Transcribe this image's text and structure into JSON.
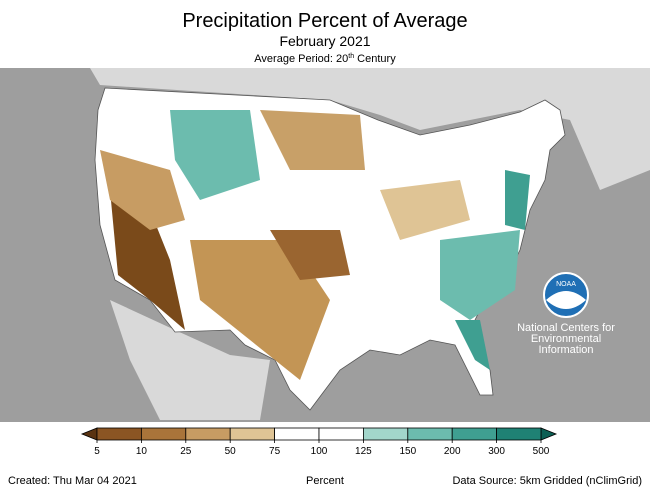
{
  "header": {
    "title": "Precipitation Percent of Average",
    "subtitle": "February 2021",
    "period": {
      "prefix": "Average Period: 20",
      "sup": "th",
      "suffix": " Century"
    }
  },
  "logo": {
    "name": "NOAA",
    "caption": [
      "National Centers for",
      "Environmental",
      "Information"
    ]
  },
  "legend": {
    "ticks": [
      5,
      10,
      25,
      50,
      75,
      100,
      125,
      150,
      200,
      300,
      500
    ],
    "colors": [
      "#5a3311",
      "#8b5523",
      "#a9743a",
      "#c79c63",
      "#dfc495",
      "#ffffff",
      "#ffffff",
      "#a2d6cb",
      "#6cbcae",
      "#3f9f91",
      "#1f8174",
      "#0b5f54"
    ],
    "label": "Percent"
  },
  "footer": {
    "created": "Created: Thu Mar 04 2021",
    "source": "Data Source: 5km Gridded (nClimGrid)"
  }
}
